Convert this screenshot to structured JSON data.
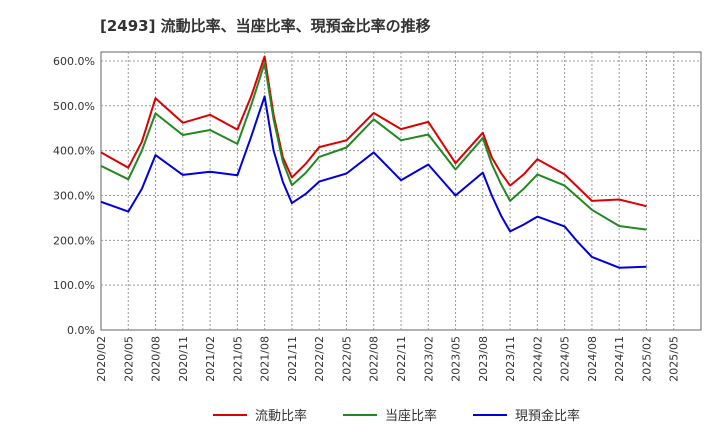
{
  "chart_data": {
    "type": "line",
    "title": "[2493]  流動比率、当座比率、現預金比率の推移",
    "xlabel": "",
    "ylabel": "",
    "ylim": [
      0,
      620
    ],
    "yticks": [
      0,
      100,
      200,
      300,
      400,
      500,
      600
    ],
    "ytick_labels": [
      "0.0%",
      "100.0%",
      "200.0%",
      "300.0%",
      "400.0%",
      "500.0%",
      "600.0%"
    ],
    "x_tick_labels": [
      "2020/02",
      "2020/05",
      "2020/08",
      "2020/11",
      "2021/02",
      "2021/05",
      "2021/08",
      "2021/11",
      "2022/02",
      "2022/05",
      "2022/08",
      "2022/11",
      "2023/02",
      "2023/05",
      "2023/08",
      "2023/11",
      "2024/02",
      "2024/05",
      "2024/08",
      "2024/11",
      "2025/02",
      "2025/05"
    ],
    "grid": true,
    "legend_position": "bottom",
    "series": [
      {
        "name": "流動比率",
        "color": "#dd0000",
        "points": [
          [
            0,
            396
          ],
          [
            1,
            362
          ],
          [
            1.5,
            420
          ],
          [
            2,
            517
          ],
          [
            3,
            462
          ],
          [
            4,
            480
          ],
          [
            5,
            447
          ],
          [
            5.5,
            520
          ],
          [
            6,
            610
          ],
          [
            6.33,
            480
          ],
          [
            6.67,
            385
          ],
          [
            7,
            340
          ],
          [
            7.5,
            370
          ],
          [
            8,
            408
          ],
          [
            9,
            423
          ],
          [
            10,
            484
          ],
          [
            11,
            448
          ],
          [
            12,
            464
          ],
          [
            13,
            372
          ],
          [
            14,
            440
          ],
          [
            14.33,
            385
          ],
          [
            14.67,
            350
          ],
          [
            15,
            322
          ],
          [
            15.5,
            347
          ],
          [
            16,
            381
          ],
          [
            17,
            347
          ],
          [
            18,
            288
          ],
          [
            19,
            291
          ],
          [
            20,
            276
          ]
        ]
      },
      {
        "name": "当座比率",
        "color": "#228822",
        "points": [
          [
            0,
            366
          ],
          [
            1,
            336
          ],
          [
            1.5,
            400
          ],
          [
            2,
            483
          ],
          [
            3,
            435
          ],
          [
            4,
            446
          ],
          [
            5,
            415
          ],
          [
            5.5,
            500
          ],
          [
            6,
            595
          ],
          [
            6.33,
            470
          ],
          [
            6.67,
            375
          ],
          [
            7,
            323
          ],
          [
            7.5,
            350
          ],
          [
            8,
            386
          ],
          [
            9,
            407
          ],
          [
            10,
            470
          ],
          [
            11,
            423
          ],
          [
            12,
            436
          ],
          [
            13,
            358
          ],
          [
            14,
            428
          ],
          [
            14.33,
            370
          ],
          [
            14.67,
            325
          ],
          [
            15,
            288
          ],
          [
            15.5,
            315
          ],
          [
            16,
            347
          ],
          [
            17,
            322
          ],
          [
            18,
            268
          ],
          [
            19,
            232
          ],
          [
            20,
            224
          ]
        ]
      },
      {
        "name": "現預金比率",
        "color": "#0000dd",
        "points": [
          [
            0,
            286
          ],
          [
            1,
            264
          ],
          [
            1.5,
            315
          ],
          [
            2,
            390
          ],
          [
            3,
            346
          ],
          [
            4,
            353
          ],
          [
            5,
            345
          ],
          [
            5.5,
            430
          ],
          [
            6,
            521
          ],
          [
            6.33,
            400
          ],
          [
            6.67,
            330
          ],
          [
            7,
            283
          ],
          [
            7.5,
            303
          ],
          [
            8,
            331
          ],
          [
            9,
            349
          ],
          [
            10,
            396
          ],
          [
            11,
            334
          ],
          [
            12,
            369
          ],
          [
            13,
            300
          ],
          [
            14,
            351
          ],
          [
            14.33,
            300
          ],
          [
            14.67,
            255
          ],
          [
            15,
            220
          ],
          [
            15.5,
            235
          ],
          [
            16,
            253
          ],
          [
            17,
            231
          ],
          [
            17.5,
            195
          ],
          [
            18,
            163
          ],
          [
            19,
            139
          ],
          [
            20,
            141
          ]
        ]
      }
    ]
  }
}
